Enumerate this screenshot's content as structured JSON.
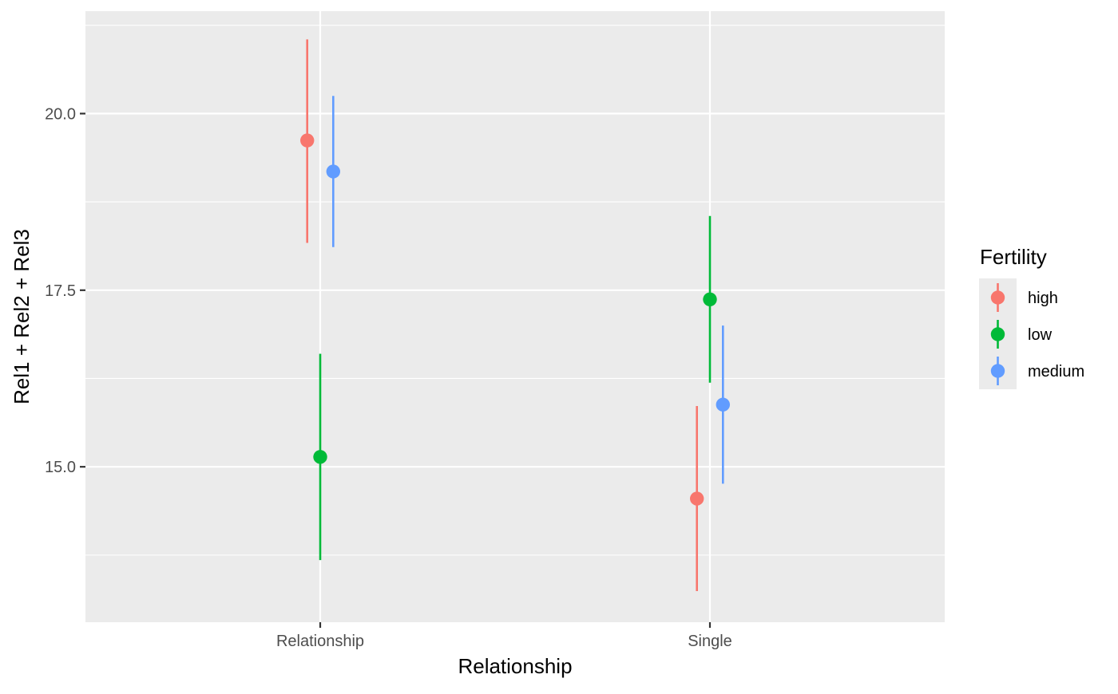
{
  "chart_data": {
    "type": "pointrange",
    "xlabel": "Relationship",
    "ylabel": "Rel1 + Rel2 + Rel3",
    "categories": [
      "Relationship",
      "Single"
    ],
    "ylim": [
      12.8,
      21.45
    ],
    "yticks": [
      15.0,
      17.5,
      20.0
    ],
    "ytick_labels": [
      "15.0",
      "17.5",
      "20.0"
    ],
    "grid": true,
    "legend": {
      "title": "Fertility",
      "position": "right"
    },
    "series": [
      {
        "name": "high",
        "color": "#F8766D",
        "points": [
          {
            "x": "Relationship",
            "y": 19.62,
            "ymin": 18.17,
            "ymax": 21.05
          },
          {
            "x": "Single",
            "y": 14.55,
            "ymin": 13.24,
            "ymax": 15.86
          }
        ]
      },
      {
        "name": "low",
        "color": "#00BA38",
        "points": [
          {
            "x": "Relationship",
            "y": 15.14,
            "ymin": 13.68,
            "ymax": 16.6
          },
          {
            "x": "Single",
            "y": 17.37,
            "ymin": 16.19,
            "ymax": 18.55
          }
        ]
      },
      {
        "name": "medium",
        "color": "#619CFF",
        "points": [
          {
            "x": "Relationship",
            "y": 19.18,
            "ymin": 18.11,
            "ymax": 20.25
          },
          {
            "x": "Single",
            "y": 15.88,
            "ymin": 14.76,
            "ymax": 17.0
          }
        ]
      }
    ]
  }
}
